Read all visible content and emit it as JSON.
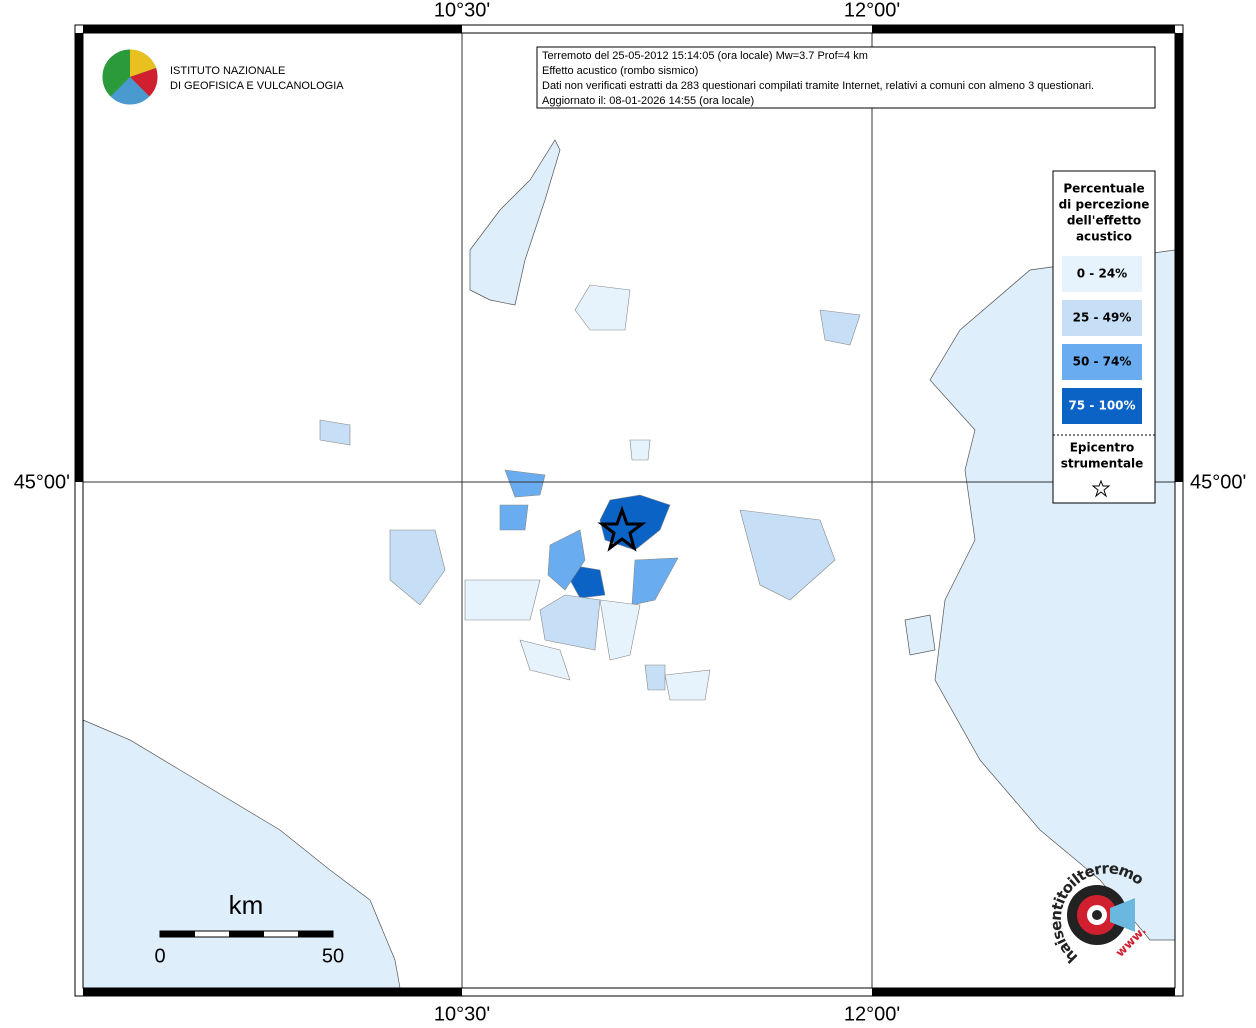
{
  "header": {
    "lines": [
      "Terremoto del 25-05-2012 15:14:05 (ora locale) Mw=3.7 Prof=4 km",
      "Effetto acustico (rombo sismico)",
      "Dati non verificati estratti da 283 questionari compilati tramite Internet, relativi a comuni con almeno 3 questionari.",
      "Aggiornato il: 08-01-2026 14:55 (ora locale)"
    ]
  },
  "logo": {
    "lines": [
      "ISTITUTO NAZIONALE",
      "DI GEOFISICA E VULCANOLOGIA"
    ]
  },
  "axes": {
    "top": [
      "10°30'",
      "12°00'"
    ],
    "bottom": [
      "10°30'",
      "12°00'"
    ],
    "left": "45°00'",
    "right": "45°00'"
  },
  "legend": {
    "title": [
      "Percentuale",
      "di percezione",
      "dell'effetto",
      "acustico"
    ],
    "classes": [
      {
        "label": "0 - 24%",
        "color": "#e6f2fc"
      },
      {
        "label": "25 - 49%",
        "color": "#c6dff7"
      },
      {
        "label": "50 - 74%",
        "color": "#69adf0"
      },
      {
        "label": "75 - 100%",
        "color": "#0b63c6"
      }
    ],
    "epicenter": [
      "Epicentro",
      "strumentale"
    ]
  },
  "scale_bar": {
    "unit": "km",
    "labels": [
      "0",
      "50"
    ]
  },
  "watermark": {
    "site": "haisentitoilterremoto.it",
    "prefix": "www."
  }
}
